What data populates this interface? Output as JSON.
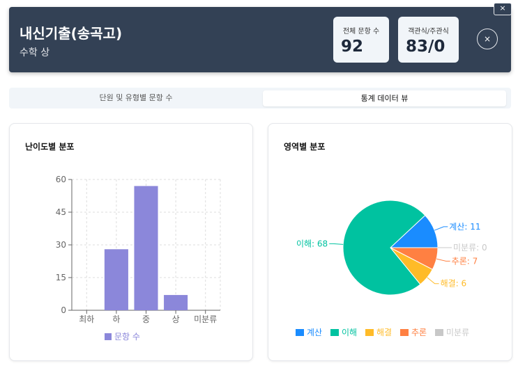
{
  "header": {
    "title": "내신기출(송곡고)",
    "subtitle": "수학 상",
    "stats": [
      {
        "label": "전체 문항 수",
        "value": "92"
      },
      {
        "label": "객관식/주관식",
        "value": "83/0"
      }
    ],
    "close_icon": "×",
    "corner_icon": "×"
  },
  "tabs": [
    {
      "label": "단원 및 유형별 문항 수",
      "active": false
    },
    {
      "label": "통계 데이터 뷰",
      "active": true
    }
  ],
  "difficulty_card": {
    "title": "난이도별 분포"
  },
  "area_card": {
    "title": "영역별 분포"
  },
  "colors": {
    "header_bg": "#334155",
    "bar": "#8b87da",
    "calc": "#1a8cff",
    "understand": "#00c2a0",
    "solve": "#ffbb28",
    "reason": "#ff8042",
    "unclassified": "#c8c8c8"
  },
  "chart_data": [
    {
      "type": "bar",
      "categories": [
        "최하",
        "하",
        "중",
        "상",
        "미분류"
      ],
      "series": [
        {
          "name": "문항 수",
          "values": [
            0,
            28,
            57,
            7,
            0
          ]
        }
      ],
      "ylim": [
        0,
        60
      ],
      "yticks": [
        0,
        15,
        30,
        45,
        60
      ],
      "grid": true,
      "legend": "bottom"
    },
    {
      "type": "pie",
      "labels": [
        "계산",
        "이해",
        "해결",
        "추론",
        "미분류"
      ],
      "values": [
        11,
        68,
        6,
        7,
        0
      ],
      "colors": [
        "#1a8cff",
        "#00c2a0",
        "#ffbb28",
        "#ff8042",
        "#c8c8c8"
      ],
      "legend": "bottom"
    }
  ]
}
